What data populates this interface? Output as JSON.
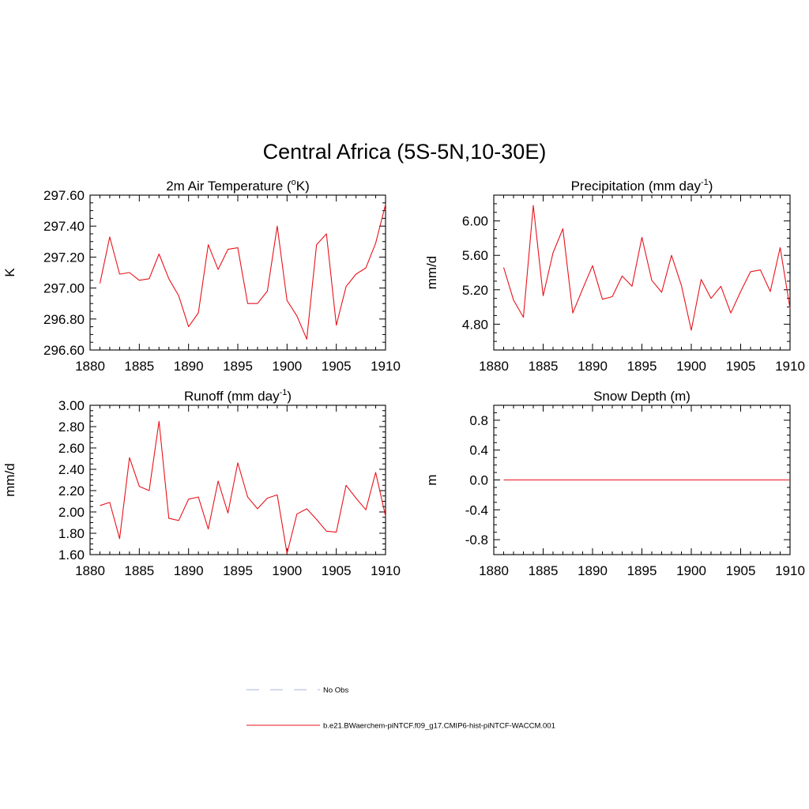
{
  "page_title": "Central Africa (5S-5N,10-30E)",
  "colors": {
    "model_line": "#e8131b",
    "obs_line": "#aab4dc",
    "axis": "#000000"
  },
  "legend": [
    {
      "label": "No Obs",
      "style": "dashed",
      "color": "#aab4dc"
    },
    {
      "label": "b.e21.BWaerchem-piNTCF.f09_g17.CMIP6-hist-piNTCF-WACCM.001",
      "style": "solid",
      "color": "#e8131b"
    }
  ],
  "chart_data": [
    {
      "type": "line",
      "title": "2m Air Temperature (",
      "title_sup": "o",
      "title_after": "K)",
      "ylabel": "K",
      "xlim": [
        1880,
        1910
      ],
      "ylim": [
        296.6,
        297.6
      ],
      "xticks": [
        1880,
        1885,
        1890,
        1895,
        1900,
        1905,
        1910
      ],
      "yticks": [
        296.6,
        296.8,
        297.0,
        297.2,
        297.4,
        297.6
      ],
      "ytick_labels": [
        "296.60",
        "296.80",
        "297.00",
        "297.20",
        "297.40",
        "297.60"
      ],
      "series": [
        {
          "x": [
            1881,
            1882,
            1883,
            1884,
            1885,
            1886,
            1887,
            1888,
            1889,
            1890,
            1891,
            1892,
            1893,
            1894,
            1895,
            1896,
            1897,
            1898,
            1899,
            1900,
            1901,
            1902,
            1903,
            1904,
            1905,
            1906,
            1907,
            1908,
            1909,
            1910
          ],
          "values": [
            297.03,
            297.33,
            297.09,
            297.1,
            297.05,
            297.06,
            297.22,
            297.06,
            296.95,
            296.75,
            296.84,
            297.28,
            297.12,
            297.25,
            297.26,
            296.9,
            296.9,
            296.98,
            297.4,
            296.92,
            296.82,
            296.67,
            297.28,
            297.35,
            296.76,
            297.01,
            297.09,
            297.13,
            297.29,
            297.54
          ]
        }
      ]
    },
    {
      "type": "line",
      "title": "Precipitation (mm day",
      "title_sup": "-1",
      "title_after": ")",
      "ylabel": "mm/d",
      "xlim": [
        1880,
        1910
      ],
      "ylim": [
        4.5,
        6.3
      ],
      "xticks": [
        1880,
        1885,
        1890,
        1895,
        1900,
        1905,
        1910
      ],
      "yticks": [
        4.8,
        5.2,
        5.6,
        6.0
      ],
      "ytick_labels": [
        "4.80",
        "5.20",
        "5.60",
        "6.00"
      ],
      "series": [
        {
          "x": [
            1881,
            1882,
            1883,
            1884,
            1885,
            1886,
            1887,
            1888,
            1889,
            1890,
            1891,
            1892,
            1893,
            1894,
            1895,
            1896,
            1897,
            1898,
            1899,
            1900,
            1901,
            1902,
            1903,
            1904,
            1905,
            1906,
            1907,
            1908,
            1909,
            1910
          ],
          "values": [
            5.46,
            5.08,
            4.88,
            6.18,
            5.13,
            5.63,
            5.91,
            4.93,
            5.21,
            5.48,
            5.09,
            5.12,
            5.36,
            5.24,
            5.81,
            5.31,
            5.17,
            5.6,
            5.25,
            4.73,
            5.32,
            5.1,
            5.24,
            4.93,
            5.18,
            5.41,
            5.43,
            5.18,
            5.69,
            4.98
          ]
        }
      ]
    },
    {
      "type": "line",
      "title": "Runoff (mm day",
      "title_sup": "-1",
      "title_after": ")",
      "ylabel": "mm/d",
      "xlim": [
        1880,
        1910
      ],
      "ylim": [
        1.6,
        3.0
      ],
      "xticks": [
        1880,
        1885,
        1890,
        1895,
        1900,
        1905,
        1910
      ],
      "yticks": [
        1.6,
        1.8,
        2.0,
        2.2,
        2.4,
        2.6,
        2.8,
        3.0
      ],
      "ytick_labels": [
        "1.60",
        "1.80",
        "2.00",
        "2.20",
        "2.40",
        "2.60",
        "2.80",
        "3.00"
      ],
      "series": [
        {
          "x": [
            1881,
            1882,
            1883,
            1884,
            1885,
            1886,
            1887,
            1888,
            1889,
            1890,
            1891,
            1892,
            1893,
            1894,
            1895,
            1896,
            1897,
            1898,
            1899,
            1900,
            1901,
            1902,
            1903,
            1904,
            1905,
            1906,
            1907,
            1908,
            1909,
            1910
          ],
          "values": [
            2.06,
            2.09,
            1.75,
            2.51,
            2.24,
            2.2,
            2.85,
            1.94,
            1.92,
            2.12,
            2.14,
            1.84,
            2.29,
            1.99,
            2.46,
            2.14,
            2.03,
            2.13,
            2.16,
            1.61,
            1.98,
            2.03,
            1.93,
            1.82,
            1.81,
            2.25,
            2.13,
            2.02,
            2.37,
            1.96
          ]
        }
      ]
    },
    {
      "type": "line",
      "title": "Snow Depth (m)",
      "title_sup": "",
      "title_after": "",
      "ylabel": "m",
      "xlim": [
        1880,
        1910
      ],
      "ylim": [
        -1.0,
        1.0
      ],
      "xticks": [
        1880,
        1885,
        1890,
        1895,
        1900,
        1905,
        1910
      ],
      "yticks": [
        -0.8,
        -0.4,
        0.0,
        0.4,
        0.8
      ],
      "ytick_labels": [
        "-0.8",
        "-0.4",
        "0.0",
        "0.4",
        "0.8"
      ],
      "series": [
        {
          "x": [
            1881,
            1882,
            1883,
            1884,
            1885,
            1886,
            1887,
            1888,
            1889,
            1890,
            1891,
            1892,
            1893,
            1894,
            1895,
            1896,
            1897,
            1898,
            1899,
            1900,
            1901,
            1902,
            1903,
            1904,
            1905,
            1906,
            1907,
            1908,
            1909,
            1910
          ],
          "values": [
            0,
            0,
            0,
            0,
            0,
            0,
            0,
            0,
            0,
            0,
            0,
            0,
            0,
            0,
            0,
            0,
            0,
            0,
            0,
            0,
            0,
            0,
            0,
            0,
            0,
            0,
            0,
            0,
            0,
            0
          ]
        }
      ]
    }
  ]
}
